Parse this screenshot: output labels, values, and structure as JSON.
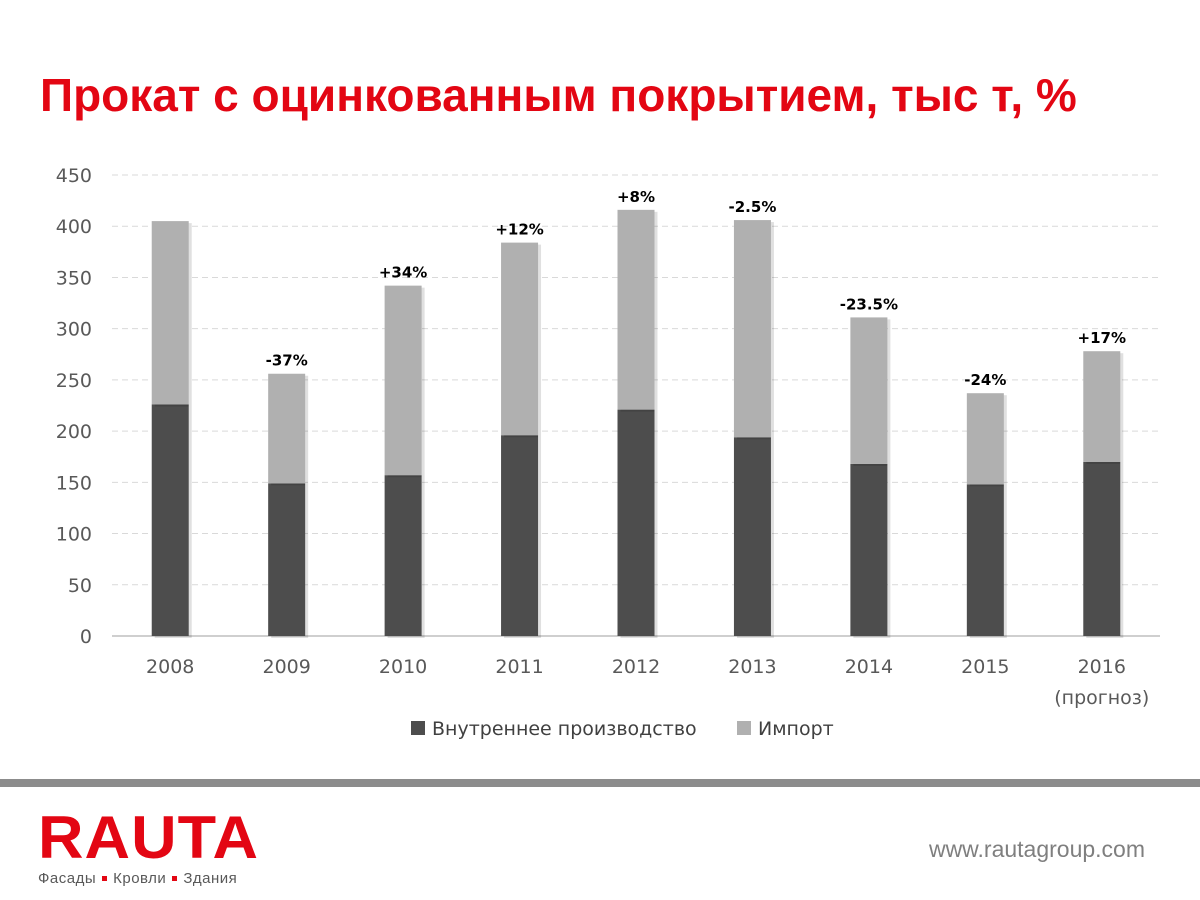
{
  "slide": {
    "title": "Прокат с оцинкованным покрытием, тыс т, %"
  },
  "chart_data": {
    "type": "bar",
    "stacked": true,
    "categories": [
      "2008",
      "2009",
      "2010",
      "2011",
      "2012",
      "2013",
      "2014",
      "2015",
      "2016"
    ],
    "category_sublabels": [
      "",
      "",
      "",
      "",
      "",
      "",
      "",
      "",
      "(прогноз)"
    ],
    "series": [
      {
        "name": "Внутреннее производство",
        "color": "#4d4d4d",
        "values": [
          226,
          149,
          157,
          196,
          221,
          194,
          168,
          148,
          170
        ]
      },
      {
        "name": "Импорт",
        "color": "#b0b0b0",
        "values": [
          179,
          107,
          185,
          188,
          195,
          212,
          143,
          89,
          108
        ]
      }
    ],
    "totals": [
      405,
      256,
      342,
      384,
      416,
      406,
      311,
      237,
      278
    ],
    "change_labels": [
      "",
      "-37%",
      "+34%",
      "+12%",
      "+8%",
      "-2.5%",
      "-23.5%",
      "-24%",
      "+17%"
    ],
    "ylim": [
      0,
      450
    ],
    "yticks": [
      0,
      50,
      100,
      150,
      200,
      250,
      300,
      350,
      400,
      450
    ],
    "grid": true,
    "legend_position": "bottom"
  },
  "footer": {
    "logo_text": "RAUTA",
    "tagline": [
      "Фасады",
      "Кровли",
      "Здания"
    ],
    "website": "www.rautagroup.com"
  }
}
